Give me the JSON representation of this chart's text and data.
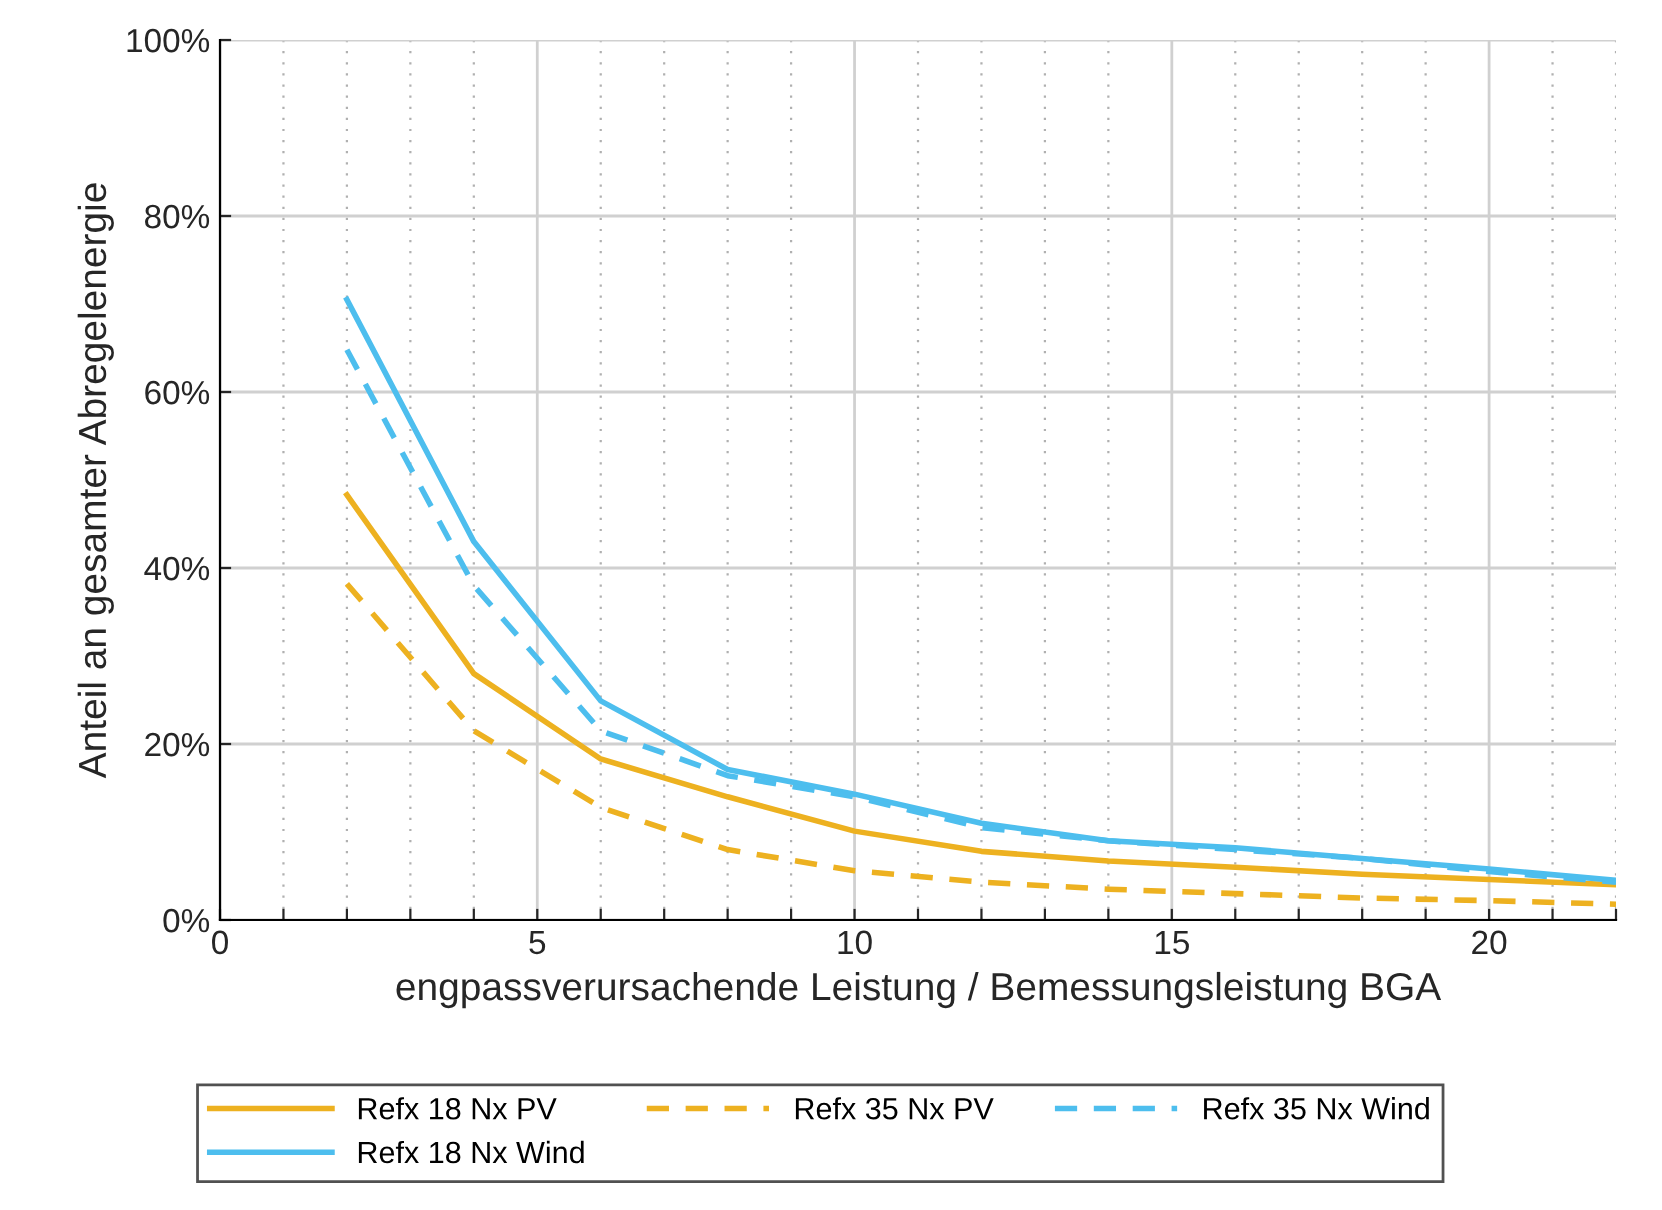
{
  "chart_data": {
    "type": "line",
    "xlabel": "engpassverursachende Leistung / Bemessungsleistung BGA",
    "ylabel": "Anteil an gesamter Abregelenergie",
    "x": [
      2,
      4,
      6,
      8,
      10,
      12,
      14,
      16,
      18,
      20,
      22
    ],
    "series": [
      {
        "name": "Refx 18 Nx PV",
        "color": "#edb120",
        "line_style": "solid",
        "values": [
          48.3,
          28,
          18.3,
          14,
          10.1,
          7.8,
          6.7,
          6,
          5.2,
          4.6,
          4.0
        ]
      },
      {
        "name": "Refx 18 Nx Wind",
        "color": "#4dbeee",
        "line_style": "solid",
        "values": [
          70.5,
          43,
          24.9,
          17.1,
          14.3,
          11,
          9,
          8.2,
          7,
          5.8,
          4.5
        ]
      },
      {
        "name": "Refx 35 Nx PV",
        "color": "#edb120",
        "line_style": "dashed",
        "values": [
          38.2,
          21.5,
          12.8,
          8,
          5.6,
          4.3,
          3.5,
          3,
          2.5,
          2.2,
          1.8
        ]
      },
      {
        "name": "Refx 35 Nx Wind",
        "color": "#4dbeee",
        "line_style": "dashed",
        "values": [
          64.8,
          38,
          21.5,
          16.4,
          14,
          10.5,
          9,
          8,
          7,
          5.5,
          4.3
        ]
      }
    ],
    "xlim": [
      0,
      22
    ],
    "xticks": [
      0,
      {
        "value": 1,
        "label": null
      },
      {
        "value": 2,
        "label": null
      },
      {
        "value": 3,
        "label": null
      },
      {
        "value": 4,
        "label": null
      },
      5,
      {
        "value": 6,
        "label": null
      },
      {
        "value": 7,
        "label": null
      },
      {
        "value": 8,
        "label": null
      },
      {
        "value": 9,
        "label": null
      },
      10,
      {
        "value": 11,
        "label": null
      },
      {
        "value": 12,
        "label": null
      },
      {
        "value": 13,
        "label": null
      },
      {
        "value": 14,
        "label": null
      },
      15,
      {
        "value": 16,
        "label": null
      },
      {
        "value": 17,
        "label": null
      },
      {
        "value": 18,
        "label": null
      },
      {
        "value": 19,
        "label": null
      },
      20,
      {
        "value": 21,
        "label": null
      },
      {
        "value": 22,
        "label": null
      }
    ],
    "ylim": [
      0,
      100
    ],
    "yticks": [
      {
        "value": 0,
        "label": "0%"
      },
      {
        "value": 20,
        "label": "20%"
      },
      {
        "value": 40,
        "label": "40%"
      },
      {
        "value": 60,
        "label": "60%"
      },
      {
        "value": 80,
        "label": "80%"
      },
      {
        "value": 100,
        "label": "100%"
      }
    ],
    "grid": true,
    "legend": "bottom",
    "marker": "none"
  }
}
